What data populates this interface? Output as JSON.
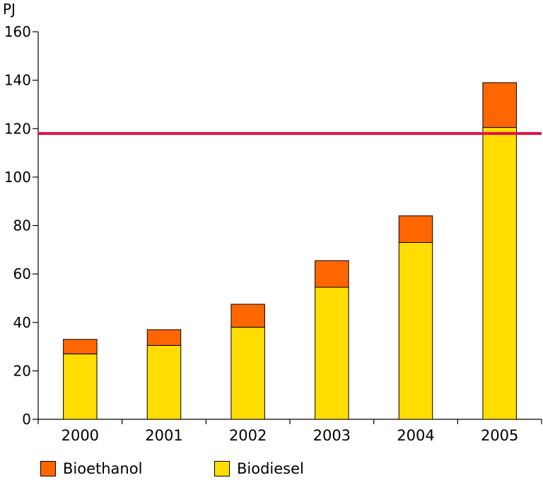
{
  "chart_data": {
    "type": "bar",
    "stacked": true,
    "ylabel": "PJ",
    "ylim": [
      0,
      160
    ],
    "yticks": [
      0,
      20,
      40,
      60,
      80,
      100,
      120,
      140,
      160
    ],
    "categories": [
      "2000",
      "2001",
      "2002",
      "2003",
      "2004",
      "2005"
    ],
    "series": [
      {
        "name": "Biodiesel",
        "color": "#ffdd00",
        "values": [
          27,
          30.5,
          38,
          54.5,
          73,
          120.5
        ]
      },
      {
        "name": "Bioethanol",
        "color": "#ff6600",
        "values": [
          6,
          6.5,
          9.5,
          11,
          11,
          18.5
        ]
      }
    ],
    "reference_line": {
      "value": 118,
      "color": "#e0104a"
    },
    "grid": false,
    "legend_position": "bottom-left"
  }
}
